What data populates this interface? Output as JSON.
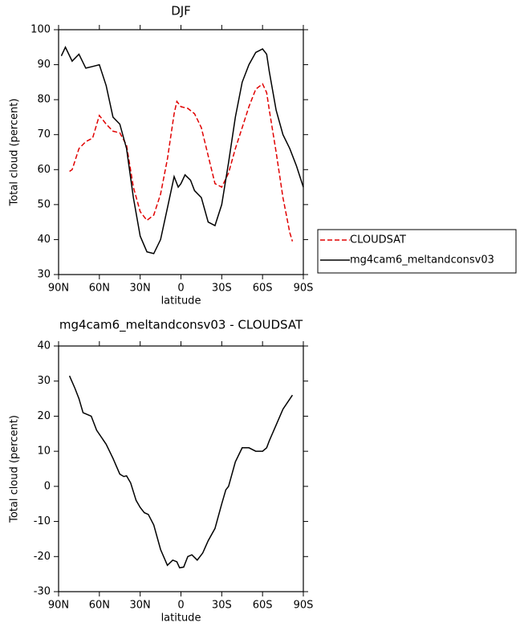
{
  "chart_data": [
    {
      "type": "line",
      "title": "DJF",
      "xlabel": "latitude",
      "ylabel": "Total cloud (percent)",
      "xlim": [
        90,
        -90
      ],
      "xticks": [
        {
          "value": 90,
          "label": "90N"
        },
        {
          "value": 60,
          "label": "60N"
        },
        {
          "value": 30,
          "label": "30N"
        },
        0,
        {
          "value": -30,
          "label": "30S"
        },
        {
          "value": -60,
          "label": "60S"
        },
        {
          "value": -90,
          "label": "90S"
        }
      ],
      "ylim": [
        30,
        100
      ],
      "yticks": [
        30,
        40,
        50,
        60,
        70,
        80,
        90,
        100
      ],
      "legend": "outside-right",
      "series": [
        {
          "name": "CLOUDSAT",
          "color": "#e00000",
          "linestyle": "dashed",
          "x": [
            82,
            80,
            75,
            70,
            65,
            60,
            55,
            50,
            45,
            40,
            35,
            30,
            25,
            20,
            15,
            10,
            5,
            3,
            0,
            -5,
            -10,
            -15,
            -20,
            -25,
            -30,
            -35,
            -40,
            -45,
            -50,
            -55,
            -60,
            -63,
            -65,
            -70,
            -75,
            -80,
            -82
          ],
          "values": [
            59.5,
            60,
            66,
            68,
            69,
            75.5,
            73,
            71,
            70.5,
            67,
            55,
            48,
            45.5,
            47,
            53,
            63,
            76,
            79.5,
            78,
            77.5,
            76,
            72,
            64,
            56,
            55,
            59,
            66,
            72,
            78,
            83,
            84.5,
            82,
            77,
            65,
            52,
            42,
            39.5
          ]
        },
        {
          "name": "mg4cam6_meltandconsv03",
          "color": "#000000",
          "linestyle": "solid",
          "x": [
            88,
            85,
            80,
            75,
            70,
            65,
            60,
            55,
            50,
            45,
            40,
            35,
            30,
            25,
            20,
            15,
            10,
            5,
            2,
            0,
            -3,
            -7,
            -10,
            -15,
            -20,
            -25,
            -30,
            -35,
            -40,
            -45,
            -50,
            -55,
            -60,
            -63,
            -65,
            -70,
            -75,
            -80,
            -85,
            -90
          ],
          "values": [
            92.5,
            95,
            91,
            93,
            89,
            89.5,
            90,
            84,
            75,
            73,
            66,
            52,
            41,
            36.5,
            36,
            40,
            49,
            58,
            55,
            56,
            58.5,
            57,
            54,
            52,
            45,
            44,
            50,
            62,
            75,
            85,
            90,
            93.5,
            94.5,
            93,
            88,
            77,
            70,
            66,
            61,
            55
          ]
        }
      ]
    },
    {
      "type": "line",
      "title": "mg4cam6_meltandconsv03 - CLOUDSAT",
      "xlabel": "latitude",
      "ylabel": "Total cloud (percent)",
      "xlim": [
        90,
        -90
      ],
      "xticks": [
        {
          "value": 90,
          "label": "90N"
        },
        {
          "value": 60,
          "label": "60N"
        },
        {
          "value": 30,
          "label": "30N"
        },
        0,
        {
          "value": -30,
          "label": "30S"
        },
        {
          "value": -60,
          "label": "60S"
        },
        {
          "value": -90,
          "label": "90S"
        }
      ],
      "ylim": [
        -30,
        40
      ],
      "yticks": [
        -30,
        -20,
        -10,
        0,
        10,
        20,
        30,
        40
      ],
      "series": [
        {
          "color": "#000000",
          "linestyle": "solid",
          "x": [
            82,
            78,
            75,
            72,
            66,
            62,
            55,
            50,
            45,
            42,
            40,
            37,
            33,
            30,
            27,
            24,
            20,
            15,
            10,
            6,
            3,
            1,
            -2,
            -5,
            -8,
            -12,
            -16,
            -20,
            -25,
            -30,
            -33,
            -35,
            -40,
            -45,
            -50,
            -55,
            -60,
            -63,
            -65,
            -70,
            -75,
            -82
          ],
          "values": [
            31.5,
            28,
            25,
            21,
            20,
            16,
            12,
            8,
            3.5,
            2.8,
            3,
            1,
            -4,
            -6,
            -7.5,
            -8,
            -11,
            -18,
            -22.5,
            -21,
            -21.5,
            -23.2,
            -23,
            -20,
            -19.5,
            -21,
            -19,
            -15.5,
            -12,
            -5,
            -1,
            0,
            7,
            11,
            11,
            10,
            10,
            11,
            13,
            17.5,
            22,
            26
          ]
        }
      ]
    }
  ]
}
